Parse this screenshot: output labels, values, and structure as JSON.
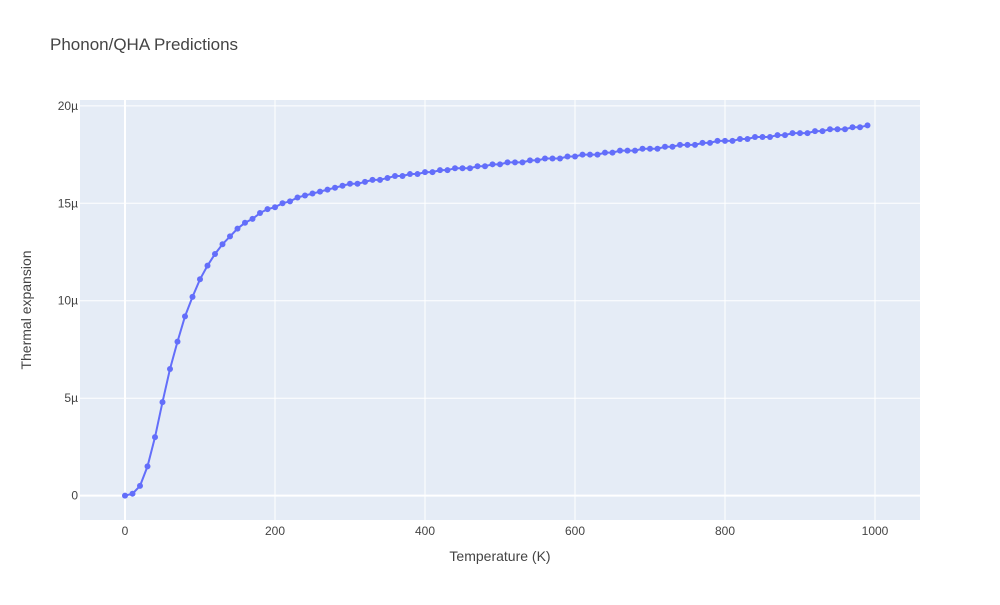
{
  "chart_data": {
    "type": "line",
    "title": "Phonon/QHA Predictions",
    "xlabel": "Temperature (K)",
    "ylabel": "Thermal expansion",
    "xlim": [
      -60,
      1060
    ],
    "ylim": [
      -1.25e-06,
      2.03e-05
    ],
    "xticks": [
      0,
      200,
      400,
      600,
      800,
      1000
    ],
    "xtick_labels": [
      "0",
      "200",
      "400",
      "600",
      "800",
      "1000"
    ],
    "yticks": [
      0,
      5e-06,
      1e-05,
      1.5e-05,
      2e-05
    ],
    "ytick_labels": [
      "0",
      "5µ",
      "10µ",
      "15µ",
      "20µ"
    ],
    "grid": true,
    "colors": {
      "series": "#636efa",
      "plot_bg": "#e5ecf6",
      "grid": "#ffffff",
      "text": "#444444"
    },
    "series": [
      {
        "x": [
          0,
          10,
          20,
          30,
          40,
          50,
          60,
          70,
          80,
          90,
          100,
          110,
          120,
          130,
          140,
          150,
          160,
          170,
          180,
          190,
          200,
          210,
          220,
          230,
          240,
          250,
          260,
          270,
          280,
          290,
          300,
          310,
          320,
          330,
          340,
          350,
          360,
          370,
          380,
          390,
          400,
          410,
          420,
          430,
          440,
          450,
          460,
          470,
          480,
          490,
          500,
          510,
          520,
          530,
          540,
          550,
          560,
          570,
          580,
          590,
          600,
          610,
          620,
          630,
          640,
          650,
          660,
          670,
          680,
          690,
          700,
          710,
          720,
          730,
          740,
          750,
          760,
          770,
          780,
          790,
          800,
          810,
          820,
          830,
          840,
          850,
          860,
          870,
          880,
          890,
          900,
          910,
          920,
          930,
          940,
          950,
          960,
          970,
          980,
          990
        ],
        "values": [
          0,
          1e-07,
          5e-07,
          1.5e-06,
          3e-06,
          4.8e-06,
          6.5e-06,
          7.9e-06,
          9.2e-06,
          1.02e-05,
          1.11e-05,
          1.18e-05,
          1.24e-05,
          1.29e-05,
          1.33e-05,
          1.37e-05,
          1.4e-05,
          1.42e-05,
          1.45e-05,
          1.47e-05,
          1.48e-05,
          1.5e-05,
          1.51e-05,
          1.53e-05,
          1.54e-05,
          1.55e-05,
          1.56e-05,
          1.57e-05,
          1.58e-05,
          1.59e-05,
          1.6e-05,
          1.6e-05,
          1.61e-05,
          1.62e-05,
          1.62e-05,
          1.63e-05,
          1.64e-05,
          1.64e-05,
          1.65e-05,
          1.65e-05,
          1.66e-05,
          1.66e-05,
          1.67e-05,
          1.67e-05,
          1.68e-05,
          1.68e-05,
          1.68e-05,
          1.69e-05,
          1.69e-05,
          1.7e-05,
          1.7e-05,
          1.71e-05,
          1.71e-05,
          1.71e-05,
          1.72e-05,
          1.72e-05,
          1.73e-05,
          1.73e-05,
          1.73e-05,
          1.74e-05,
          1.74e-05,
          1.75e-05,
          1.75e-05,
          1.75e-05,
          1.76e-05,
          1.76e-05,
          1.77e-05,
          1.77e-05,
          1.77e-05,
          1.78e-05,
          1.78e-05,
          1.78e-05,
          1.79e-05,
          1.79e-05,
          1.8e-05,
          1.8e-05,
          1.8e-05,
          1.81e-05,
          1.81e-05,
          1.82e-05,
          1.82e-05,
          1.82e-05,
          1.83e-05,
          1.83e-05,
          1.84e-05,
          1.84e-05,
          1.84e-05,
          1.85e-05,
          1.85e-05,
          1.86e-05,
          1.86e-05,
          1.86e-05,
          1.87e-05,
          1.87e-05,
          1.88e-05,
          1.88e-05,
          1.88e-05,
          1.89e-05,
          1.89e-05,
          1.9e-05
        ]
      }
    ]
  }
}
